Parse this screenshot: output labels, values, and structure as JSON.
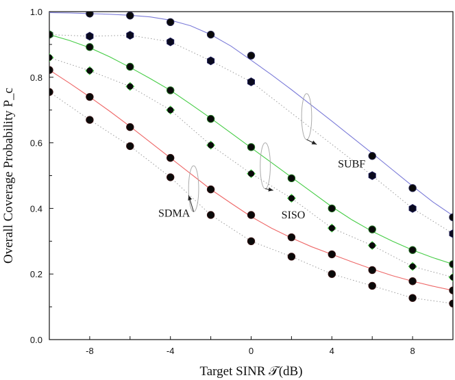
{
  "chart_data": {
    "type": "line",
    "xlabel": "Target SINR 𝒯(dB)",
    "ylabel": "Overall Coverage Probability P_c",
    "xlim": [
      -10,
      10
    ],
    "ylim": [
      0,
      1
    ],
    "xticks": [
      -8,
      -4,
      0,
      4,
      8
    ],
    "yticks": [
      "0.0",
      "0.2",
      "0.4",
      "0.6",
      "0.8",
      "1.0"
    ],
    "x": [
      -10,
      -8,
      -6,
      -4,
      -2,
      0,
      2,
      4,
      6,
      8,
      10
    ],
    "series": [
      {
        "group": "SUBF",
        "kind": "solid",
        "color": "#7a7ad8",
        "x": [
          -10,
          -9,
          -8,
          -7,
          -6,
          -5,
          -4,
          -3,
          -2,
          -1,
          0,
          1,
          2,
          3,
          4,
          5,
          6,
          7,
          8,
          9,
          10
        ],
        "values": [
          0.997,
          0.996,
          0.994,
          0.992,
          0.989,
          0.984,
          0.974,
          0.957,
          0.93,
          0.895,
          0.852,
          0.808,
          0.762,
          0.714,
          0.666,
          0.617,
          0.568,
          0.518,
          0.468,
          0.42,
          0.378
        ]
      },
      {
        "group": "SUBF",
        "kind": "markers",
        "marker": "circle",
        "x": [
          -8,
          -6,
          -4,
          -2,
          0,
          6,
          8,
          10
        ],
        "values": [
          0.994,
          0.988,
          0.968,
          0.93,
          0.866,
          0.56,
          0.462,
          0.373
        ]
      },
      {
        "group": "SUBF",
        "kind": "dotted-markers",
        "marker": "hexagon",
        "x": [
          -10,
          -8,
          -6,
          -4,
          -2,
          0,
          6,
          8,
          10
        ],
        "values": [
          0.93,
          0.925,
          0.928,
          0.908,
          0.85,
          0.786,
          0.5,
          0.4,
          0.323
        ]
      },
      {
        "group": "SISO",
        "kind": "solid",
        "color": "#44cc44",
        "x": [
          -10,
          -9,
          -8,
          -7,
          -6,
          -5,
          -4,
          -3,
          -2,
          -1,
          0,
          1,
          2,
          3,
          4,
          5,
          6,
          7,
          8,
          9,
          10
        ],
        "values": [
          0.93,
          0.912,
          0.89,
          0.862,
          0.83,
          0.796,
          0.76,
          0.718,
          0.675,
          0.63,
          0.585,
          0.54,
          0.495,
          0.45,
          0.405,
          0.365,
          0.33,
          0.3,
          0.273,
          0.25,
          0.23
        ]
      },
      {
        "group": "SISO",
        "kind": "markers",
        "marker": "circle",
        "x": [
          -10,
          -8,
          -6,
          -4,
          -2,
          0,
          2,
          4,
          6,
          8,
          10
        ],
        "values": [
          0.93,
          0.892,
          0.832,
          0.76,
          0.673,
          0.587,
          0.492,
          0.4,
          0.336,
          0.273,
          0.23
        ]
      },
      {
        "group": "SISO",
        "kind": "dotted-markers",
        "marker": "diamond",
        "x": [
          -10,
          -8,
          -6,
          -4,
          -2,
          0,
          2,
          4,
          6,
          8,
          10
        ],
        "values": [
          0.86,
          0.82,
          0.772,
          0.7,
          0.593,
          0.506,
          0.431,
          0.34,
          0.287,
          0.223,
          0.19
        ]
      },
      {
        "group": "SDMA",
        "kind": "solid",
        "color": "#ee6666",
        "x": [
          -10,
          -9,
          -8,
          -7,
          -6,
          -5,
          -4,
          -3,
          -2,
          -1,
          0,
          1,
          2,
          3,
          4,
          5,
          6,
          7,
          8,
          9,
          10
        ],
        "values": [
          0.822,
          0.782,
          0.74,
          0.696,
          0.65,
          0.602,
          0.554,
          0.506,
          0.458,
          0.416,
          0.375,
          0.34,
          0.31,
          0.283,
          0.26,
          0.237,
          0.215,
          0.195,
          0.178,
          0.163,
          0.15
        ]
      },
      {
        "group": "SDMA",
        "kind": "markers",
        "marker": "circle",
        "x": [
          -10,
          -8,
          -6,
          -4,
          -2,
          0,
          2,
          4,
          6,
          8,
          10
        ],
        "values": [
          0.822,
          0.74,
          0.648,
          0.554,
          0.458,
          0.38,
          0.312,
          0.26,
          0.212,
          0.178,
          0.15
        ]
      },
      {
        "group": "SDMA",
        "kind": "dotted-markers",
        "marker": "circle",
        "x": [
          -10,
          -8,
          -6,
          -4,
          -2,
          0,
          2,
          4,
          6,
          8,
          10
        ],
        "values": [
          0.755,
          0.67,
          0.59,
          0.495,
          0.38,
          0.3,
          0.253,
          0.2,
          0.164,
          0.127,
          0.11
        ]
      }
    ],
    "annotations": [
      {
        "label": "SUBF",
        "ellipse": {
          "cx": 2.75,
          "cy": 0.68,
          "rx": 0.25,
          "ry": 0.07
        },
        "arrow_to": {
          "x": 3.25,
          "y": 0.595
        },
        "text_at": {
          "x": 4.3,
          "y": 0.525
        }
      },
      {
        "label": "SISO",
        "ellipse": {
          "cx": 0.7,
          "cy": 0.53,
          "rx": 0.25,
          "ry": 0.07
        },
        "arrow_to": {
          "x": 1.1,
          "y": 0.455
        },
        "text_at": {
          "x": 1.5,
          "y": 0.37
        }
      },
      {
        "label": "SDMA",
        "ellipse": {
          "cx": -2.85,
          "cy": 0.46,
          "rx": 0.25,
          "ry": 0.07
        },
        "arrow_to": {
          "x": -3.1,
          "y": 0.44
        },
        "text_at": {
          "x": -4.6,
          "y": 0.375
        }
      }
    ]
  }
}
